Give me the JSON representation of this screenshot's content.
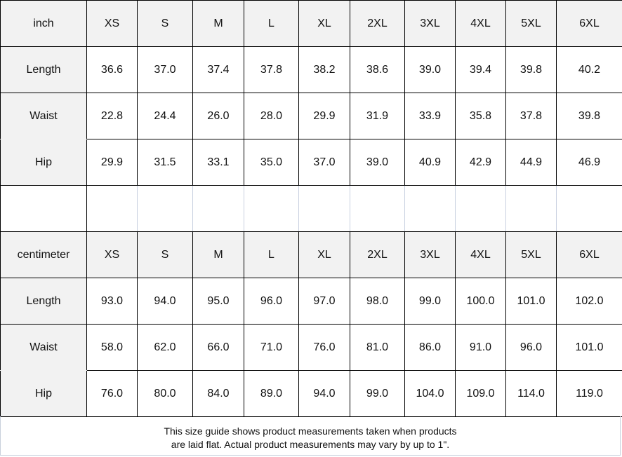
{
  "sizes": [
    "XS",
    "S",
    "M",
    "L",
    "XL",
    "2XL",
    "3XL",
    "4XL",
    "5XL",
    "6XL"
  ],
  "tables": [
    {
      "unit": "inch",
      "rows": [
        {
          "label": "Length",
          "values": [
            "36.6",
            "37.0",
            "37.4",
            "37.8",
            "38.2",
            "38.6",
            "39.0",
            "39.4",
            "39.8",
            "40.2"
          ]
        },
        {
          "label": "Waist",
          "values": [
            "22.8",
            "24.4",
            "26.0",
            "28.0",
            "29.9",
            "31.9",
            "33.9",
            "35.8",
            "37.8",
            "39.8"
          ]
        },
        {
          "label": "Hip",
          "values": [
            "29.9",
            "31.5",
            "33.1",
            "35.0",
            "37.0",
            "39.0",
            "40.9",
            "42.9",
            "44.9",
            "46.9"
          ]
        }
      ]
    },
    {
      "unit": "centimeter",
      "rows": [
        {
          "label": "Length",
          "values": [
            "93.0",
            "94.0",
            "95.0",
            "96.0",
            "97.0",
            "98.0",
            "99.0",
            "100.0",
            "101.0",
            "102.0"
          ]
        },
        {
          "label": "Waist",
          "values": [
            "58.0",
            "62.0",
            "66.0",
            "71.0",
            "76.0",
            "81.0",
            "86.0",
            "91.0",
            "96.0",
            "101.0"
          ]
        },
        {
          "label": "Hip",
          "values": [
            "76.0",
            "80.0",
            "84.0",
            "89.0",
            "94.0",
            "99.0",
            "104.0",
            "109.0",
            "114.0",
            "119.0"
          ]
        }
      ]
    }
  ],
  "note": {
    "line1": "This size guide shows product measurements taken when products",
    "line2": "are laid flat. Actual product measurements may vary by up to 1\"."
  }
}
